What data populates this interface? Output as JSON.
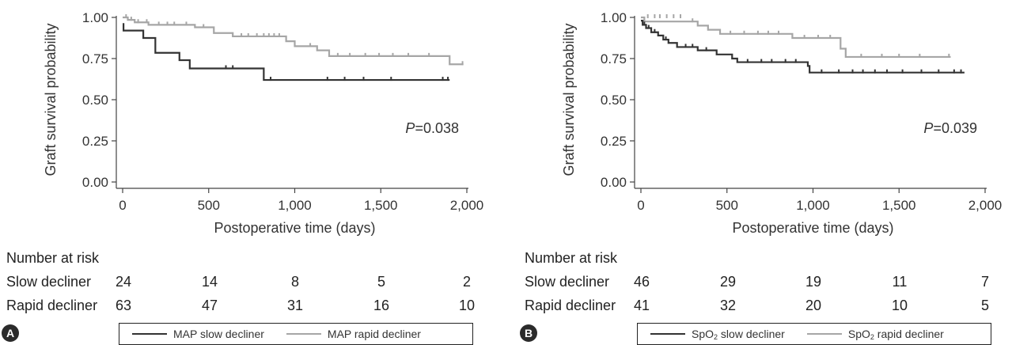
{
  "colors": {
    "slow": "#333333",
    "rapid": "#a6a6a6",
    "axis": "#444444",
    "text": "#222222"
  },
  "panels": [
    {
      "letter": "A",
      "p_prefix": "P",
      "p_value": "=0.038",
      "legend": {
        "slow": "MAP slow decliner",
        "rapid": "MAP rapid decliner"
      },
      "risk": {
        "header": "Number at risk",
        "rows": [
          {
            "label": "Slow decliner",
            "values": [
              "24",
              "14",
              "8",
              "5",
              "2"
            ]
          },
          {
            "label": "Rapid decliner",
            "values": [
              "63",
              "47",
              "31",
              "16",
              "10"
            ]
          }
        ]
      }
    },
    {
      "letter": "B",
      "p_prefix": "P",
      "p_value": "=0.039",
      "legend": {
        "slow_prefix": "SpO",
        "slow_sub": "2",
        "slow_suffix": " slow decliner",
        "rapid_prefix": "SpO",
        "rapid_sub": "2",
        "rapid_suffix": " rapid decliner"
      },
      "risk": {
        "header": "Number at risk",
        "rows": [
          {
            "label": "Slow decliner",
            "values": [
              "46",
              "29",
              "19",
              "11",
              "7"
            ]
          },
          {
            "label": "Rapid decliner",
            "values": [
              "41",
              "32",
              "20",
              "10",
              "5"
            ]
          }
        ]
      }
    }
  ],
  "chart_data": [
    {
      "type": "line",
      "step": true,
      "xlabel": "Postoperative time (days)",
      "ylabel": "Graft survival probability",
      "xlim": [
        0,
        2000
      ],
      "ylim": [
        0,
        1
      ],
      "xticks": [
        0,
        500,
        1000,
        1500,
        2000
      ],
      "xtick_labels": [
        "0",
        "500",
        "1,000",
        "1,500",
        "2,000"
      ],
      "yticks": [
        0,
        0.25,
        0.5,
        0.75,
        1
      ],
      "ytick_labels": [
        "0.00",
        "0.25",
        "0.50",
        "0.75",
        "1.00"
      ],
      "series": [
        {
          "name": "MAP slow decliner",
          "color": "#333333",
          "points": [
            [
              0,
              0.96
            ],
            [
              5,
              0.92
            ],
            [
              120,
              0.875
            ],
            [
              190,
              0.785
            ],
            [
              330,
              0.74
            ],
            [
              390,
              0.69
            ],
            [
              820,
              0.62
            ],
            [
              1900,
              0.62
            ]
          ],
          "censored": [
            [
              600,
              0.69
            ],
            [
              640,
              0.69
            ],
            [
              860,
              0.62
            ],
            [
              1190,
              0.62
            ],
            [
              1290,
              0.62
            ],
            [
              1400,
              0.62
            ],
            [
              1560,
              0.62
            ],
            [
              1860,
              0.62
            ],
            [
              1890,
              0.62
            ]
          ]
        },
        {
          "name": "MAP rapid decliner",
          "color": "#a6a6a6",
          "points": [
            [
              0,
              1.0
            ],
            [
              30,
              0.985
            ],
            [
              70,
              0.97
            ],
            [
              150,
              0.955
            ],
            [
              420,
              0.94
            ],
            [
              530,
              0.905
            ],
            [
              640,
              0.885
            ],
            [
              950,
              0.855
            ],
            [
              1000,
              0.825
            ],
            [
              1130,
              0.8
            ],
            [
              1200,
              0.765
            ],
            [
              1900,
              0.715
            ],
            [
              1980,
              0.715
            ]
          ],
          "censored": [
            [
              20,
              1.0
            ],
            [
              50,
              0.985
            ],
            [
              90,
              0.97
            ],
            [
              140,
              0.97
            ],
            [
              210,
              0.955
            ],
            [
              260,
              0.955
            ],
            [
              300,
              0.955
            ],
            [
              370,
              0.955
            ],
            [
              470,
              0.94
            ],
            [
              690,
              0.885
            ],
            [
              730,
              0.885
            ],
            [
              780,
              0.885
            ],
            [
              820,
              0.885
            ],
            [
              850,
              0.885
            ],
            [
              880,
              0.885
            ],
            [
              910,
              0.885
            ],
            [
              1090,
              0.825
            ],
            [
              1250,
              0.765
            ],
            [
              1320,
              0.765
            ],
            [
              1410,
              0.765
            ],
            [
              1490,
              0.765
            ],
            [
              1570,
              0.765
            ],
            [
              1660,
              0.765
            ],
            [
              1780,
              0.765
            ],
            [
              1975,
              0.715
            ]
          ]
        }
      ]
    },
    {
      "type": "line",
      "step": true,
      "xlabel": "Postoperative time (days)",
      "ylabel": "Graft survival probability",
      "xlim": [
        0,
        2000
      ],
      "ylim": [
        0,
        1
      ],
      "xticks": [
        0,
        500,
        1000,
        1500,
        2000
      ],
      "xtick_labels": [
        "0",
        "500",
        "1,000",
        "1,500",
        "2,000"
      ],
      "yticks": [
        0,
        0.25,
        0.5,
        0.75,
        1
      ],
      "ytick_labels": [
        "0.00",
        "0.25",
        "0.50",
        "0.75",
        "1.00"
      ],
      "series": [
        {
          "name": "SpO2 slow decliner",
          "color": "#333333",
          "points": [
            [
              0,
              0.98
            ],
            [
              10,
              0.955
            ],
            [
              30,
              0.935
            ],
            [
              60,
              0.91
            ],
            [
              100,
              0.89
            ],
            [
              130,
              0.865
            ],
            [
              160,
              0.845
            ],
            [
              210,
              0.82
            ],
            [
              330,
              0.8
            ],
            [
              440,
              0.775
            ],
            [
              530,
              0.75
            ],
            [
              560,
              0.728
            ],
            [
              970,
              0.705
            ],
            [
              980,
              0.665
            ],
            [
              1880,
              0.665
            ]
          ],
          "censored": [
            [
              20,
              0.955
            ],
            [
              45,
              0.935
            ],
            [
              80,
              0.91
            ],
            [
              145,
              0.865
            ],
            [
              260,
              0.82
            ],
            [
              300,
              0.82
            ],
            [
              380,
              0.8
            ],
            [
              620,
              0.728
            ],
            [
              700,
              0.728
            ],
            [
              760,
              0.728
            ],
            [
              840,
              0.728
            ],
            [
              900,
              0.728
            ],
            [
              1050,
              0.665
            ],
            [
              1150,
              0.665
            ],
            [
              1230,
              0.665
            ],
            [
              1290,
              0.665
            ],
            [
              1360,
              0.665
            ],
            [
              1430,
              0.665
            ],
            [
              1520,
              0.665
            ],
            [
              1630,
              0.665
            ],
            [
              1730,
              0.665
            ],
            [
              1820,
              0.665
            ],
            [
              1860,
              0.665
            ]
          ]
        },
        {
          "name": "SpO2 rapid decliner",
          "color": "#a6a6a6",
          "points": [
            [
              0,
              1.0
            ],
            [
              20,
              0.975
            ],
            [
              330,
              0.95
            ],
            [
              390,
              0.925
            ],
            [
              460,
              0.9
            ],
            [
              880,
              0.875
            ],
            [
              1160,
              0.81
            ],
            [
              1190,
              0.76
            ],
            [
              1800,
              0.76
            ]
          ],
          "censored": [
            [
              40,
              1.0
            ],
            [
              80,
              1.0
            ],
            [
              110,
              1.0
            ],
            [
              150,
              1.0
            ],
            [
              190,
              1.0
            ],
            [
              230,
              1.0
            ],
            [
              300,
              0.975
            ],
            [
              520,
              0.9
            ],
            [
              600,
              0.9
            ],
            [
              680,
              0.9
            ],
            [
              740,
              0.9
            ],
            [
              800,
              0.9
            ],
            [
              950,
              0.875
            ],
            [
              1030,
              0.875
            ],
            [
              1100,
              0.875
            ],
            [
              1280,
              0.76
            ],
            [
              1400,
              0.76
            ],
            [
              1500,
              0.76
            ],
            [
              1620,
              0.76
            ],
            [
              1790,
              0.76
            ]
          ]
        }
      ]
    }
  ]
}
